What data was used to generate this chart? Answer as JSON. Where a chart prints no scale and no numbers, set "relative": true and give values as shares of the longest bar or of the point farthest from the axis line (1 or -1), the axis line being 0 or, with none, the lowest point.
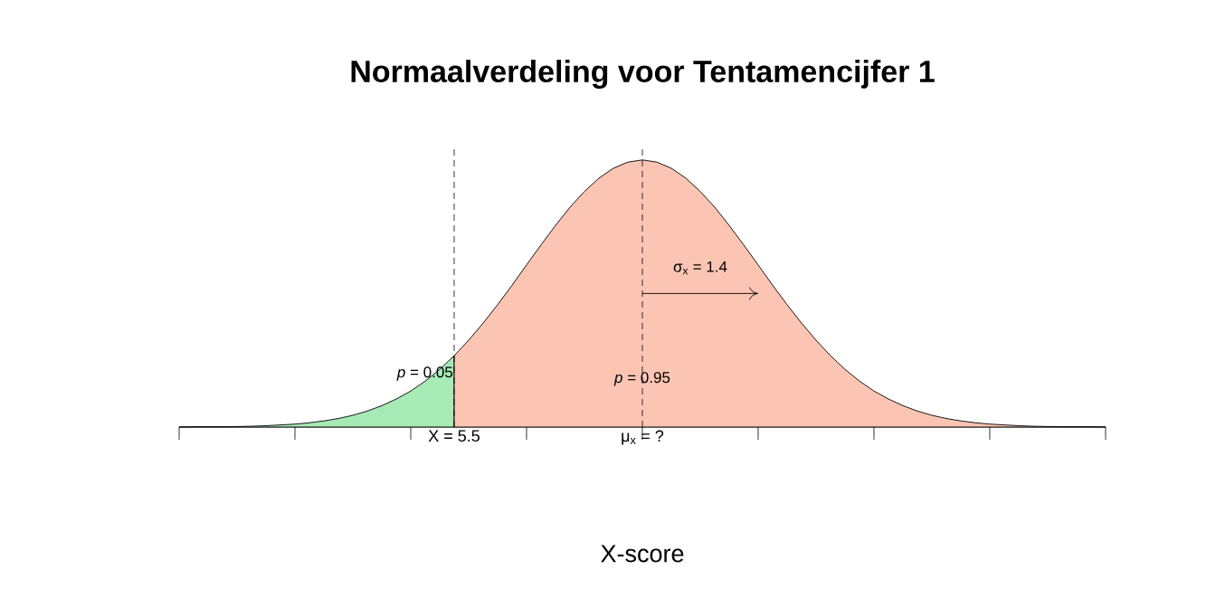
{
  "chart_data": {
    "type": "area",
    "title": "Normaalverdeling voor Tentamencijfer 1",
    "xlabel": "X-score",
    "relative": true,
    "categories": [
      null,
      null,
      null,
      null,
      null,
      null,
      null,
      null,
      null,
      null,
      null,
      null,
      null,
      null,
      null,
      null,
      null,
      null,
      null,
      "X = 5.5",
      null,
      null,
      null,
      null,
      null,
      null,
      null,
      null,
      null,
      null,
      null,
      null,
      "μ$_{x}$ = ?",
      null,
      null,
      null,
      null,
      null,
      null,
      null,
      null,
      null,
      null,
      null,
      null,
      null,
      null,
      null,
      null,
      null,
      null,
      null,
      null,
      null,
      null,
      null,
      null,
      null,
      null,
      null,
      null,
      null,
      null,
      null,
      null
    ],
    "series": [
      {
        "color": "#a6eab6",
        "values": [
          0,
          0.001,
          0.001,
          0.001,
          0.002,
          0.003,
          0.005,
          0.008,
          0.011,
          0.016,
          0.023,
          0.032,
          0.044,
          0.06,
          0.08,
          0.105,
          0.135,
          0.172,
          0.216,
          0.267,
          null,
          null,
          null,
          null,
          null,
          null,
          null,
          null,
          null,
          null,
          null,
          null,
          null,
          null,
          null,
          null,
          null,
          null,
          null,
          null,
          null,
          null,
          null,
          null,
          null,
          null,
          null,
          null,
          null,
          null,
          null,
          null,
          null,
          null,
          null,
          null,
          null,
          null,
          null,
          null,
          null,
          null,
          null,
          null,
          null
        ]
      },
      {
        "color": "#fcc5b3",
        "values": [
          null,
          null,
          null,
          null,
          null,
          null,
          null,
          null,
          null,
          null,
          null,
          null,
          null,
          null,
          null,
          null,
          null,
          null,
          null,
          0.267,
          0.325,
          0.389,
          0.458,
          0.531,
          0.607,
          0.682,
          0.755,
          0.823,
          0.882,
          0.932,
          0.969,
          0.992,
          1,
          0.992,
          0.969,
          0.932,
          0.882,
          0.823,
          0.755,
          0.682,
          0.607,
          0.531,
          0.458,
          0.389,
          0.325,
          0.267,
          0.216,
          0.172,
          0.135,
          0.105,
          0.08,
          0.06,
          0.044,
          0.032,
          0.023,
          0.016,
          0.011,
          0.008,
          0.005,
          0.003,
          0.002,
          0.001,
          0.001,
          0.001,
          0
        ]
      }
    ],
    "ref_lines": [
      {
        "axis": "x",
        "value": "X = 5.5",
        "line_style": "dashed"
      },
      {
        "axis": "x",
        "value": "μ$_{x}$ = ?",
        "line_style": "dashed"
      }
    ],
    "annotations": [
      "*p* = 0.05",
      "*p* = 0.95",
      "σ$_{x}$ = 1.4"
    ]
  }
}
